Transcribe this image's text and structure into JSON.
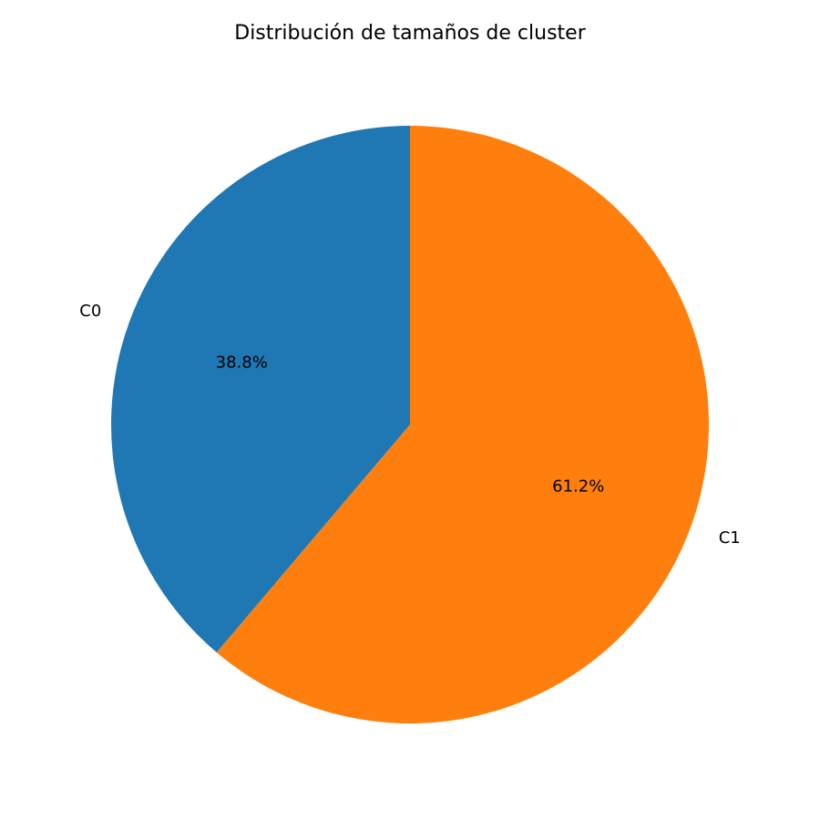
{
  "chart_data": {
    "type": "pie",
    "title": "Distribución de tamaños de cluster",
    "slices": [
      {
        "label": "C0",
        "value": 38.8,
        "pct_label": "38.8%",
        "color": "#1f77b4"
      },
      {
        "label": "C1",
        "value": 61.2,
        "pct_label": "61.2%",
        "color": "#ff7f0e"
      }
    ],
    "start_angle_deg": 90,
    "direction": "counterclockwise"
  }
}
